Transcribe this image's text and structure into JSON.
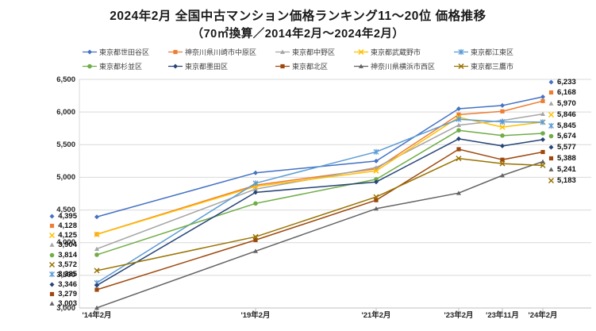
{
  "title": "2024年2月 全国中古マンション価格ランキング11～20位 価格推移",
  "subtitle": "（70㎡換算／2014年2月～2024年2月）",
  "chart_data": {
    "type": "line",
    "title": "2024年2月 全国中古マンション価格ランキング11～20位 価格推移",
    "subtitle": "（70㎡換算／2014年2月～2024年2月）",
    "x_labels": [
      "'14年2月",
      "'19年2月",
      "'21年2月",
      "'23年2月",
      "'23年11月",
      "'24年2月"
    ],
    "y_axis": {
      "min": 3000,
      "max": 6500,
      "step": 500,
      "tick_labels": [
        "3,000",
        "3,500",
        "4,000",
        "4,500",
        "5,000",
        "5,500",
        "6,000",
        "6,500"
      ]
    },
    "grid": true,
    "legend_position": "top",
    "legend_columns": 5,
    "series": [
      {
        "name": "東京都世田谷区",
        "color": "#4472C4",
        "marker": "diamond",
        "values": [
          4395,
          5070,
          5250,
          6050,
          6100,
          6233
        ],
        "start_label": "4,395",
        "end_label": "6,233"
      },
      {
        "name": "神奈川県川崎市中原区",
        "color": "#ED7D31",
        "marker": "square",
        "values": [
          4128,
          4880,
          5130,
          5960,
          6010,
          6168
        ],
        "start_label": "4,128",
        "end_label": "6,168"
      },
      {
        "name": "東京都中野区",
        "color": "#A5A5A5",
        "marker": "triangle",
        "values": [
          3904,
          4820,
          5150,
          5800,
          5870,
          5970
        ],
        "start_label": "3,904",
        "end_label": "5,970"
      },
      {
        "name": "東京都武蔵野市",
        "color": "#FFC000",
        "marker": "x",
        "values": [
          4125,
          4860,
          5100,
          5920,
          5770,
          5846
        ],
        "start_label": "4,125",
        "end_label": "5,846"
      },
      {
        "name": "東京都江東区",
        "color": "#5B9BD5",
        "marker": "asterisk",
        "values": [
          3385,
          4910,
          5390,
          5890,
          5850,
          5845
        ],
        "start_label": "3,385",
        "end_label": "5,845"
      },
      {
        "name": "東京都杉並区",
        "color": "#70AD47",
        "marker": "circle",
        "values": [
          3814,
          4600,
          4970,
          5720,
          5640,
          5674
        ],
        "start_label": "3,814",
        "end_label": "5,674"
      },
      {
        "name": "東京都墨田区",
        "color": "#264478",
        "marker": "diamond",
        "values": [
          3346,
          4770,
          4930,
          5590,
          5480,
          5577
        ],
        "start_label": "3,346",
        "end_label": "5,577"
      },
      {
        "name": "東京都北区",
        "color": "#9E480E",
        "marker": "square",
        "values": [
          3279,
          4040,
          4650,
          5430,
          5270,
          5388
        ],
        "start_label": "3,279",
        "end_label": "5,388"
      },
      {
        "name": "神奈川県横浜市西区",
        "color": "#636363",
        "marker": "triangle",
        "values": [
          3003,
          3870,
          4520,
          4760,
          5030,
          5241
        ],
        "start_label": "3,003",
        "end_label": "5,241"
      },
      {
        "name": "東京都三鷹市",
        "color": "#997300",
        "marker": "x",
        "values": [
          3572,
          4090,
          4700,
          5290,
          5210,
          5183
        ],
        "start_label": "3,572",
        "end_label": "5,183"
      }
    ],
    "start_label_order": [
      0,
      1,
      3,
      2,
      5,
      9,
      4,
      6,
      7,
      8
    ],
    "end_label_order": [
      0,
      1,
      2,
      3,
      4,
      5,
      6,
      7,
      8,
      9
    ]
  }
}
